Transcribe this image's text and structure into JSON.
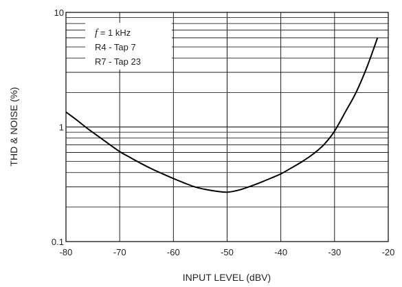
{
  "chart_data": {
    "type": "line",
    "xlabel": "INPUT LEVEL (dBV)",
    "ylabel": "THD & NOISE (%)",
    "xlim": [
      -80,
      -20
    ],
    "ylim": [
      0.1,
      10
    ],
    "y_scale": "log",
    "grid": true,
    "x_ticks": [
      -80,
      -70,
      -60,
      -50,
      -40,
      -30,
      -20
    ],
    "x_tick_labels": [
      "-80",
      "-70",
      "-60",
      "-50",
      "-40",
      "-30",
      "-20"
    ],
    "y_ticks": [
      0.1,
      1,
      10
    ],
    "y_tick_labels": [
      "0.1",
      "1",
      "10"
    ],
    "legend": {
      "placement": "top-left",
      "f_symbol": "f",
      "f_value": " = 1 kHz",
      "line2": "R4 - Tap 7",
      "line3": "R7 - Tap 23"
    },
    "series": [
      {
        "x": [
          -80,
          -78,
          -76,
          -74,
          -72,
          -70,
          -68,
          -66,
          -64,
          -62,
          -60,
          -58,
          -56,
          -54,
          -52,
          -50,
          -48,
          -46,
          -44,
          -42,
          -40,
          -38,
          -36,
          -34,
          -32,
          -30,
          -28,
          -26,
          -24,
          -22
        ],
        "y": [
          1.35,
          1.15,
          0.97,
          0.83,
          0.71,
          0.61,
          0.54,
          0.48,
          0.43,
          0.39,
          0.355,
          0.325,
          0.3,
          0.285,
          0.275,
          0.27,
          0.28,
          0.3,
          0.325,
          0.355,
          0.39,
          0.44,
          0.5,
          0.58,
          0.7,
          0.92,
          1.35,
          2.0,
          3.3,
          6.0
        ]
      }
    ]
  }
}
